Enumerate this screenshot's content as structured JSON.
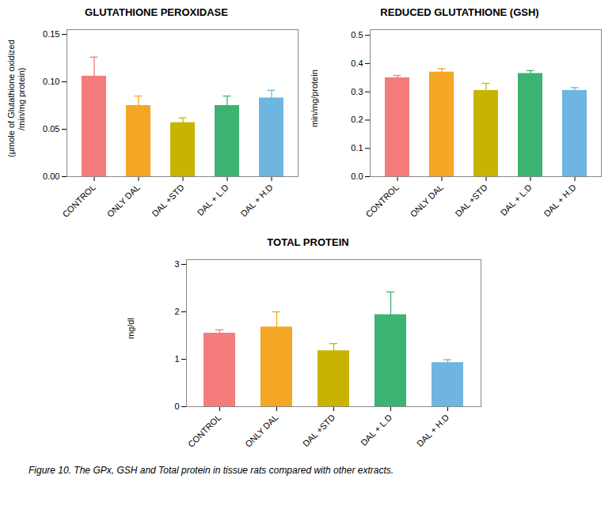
{
  "chart_data": [
    {
      "type": "bar",
      "title": "GLUTATHIONE PEROXIDASE",
      "ylabel": "(μmole of Glutathione oxidized\n/min/mg protein)",
      "categories": [
        "CONTROL",
        "ONLY DAL",
        "DAL +STD",
        "DAL + L.D",
        "DAL + H.D"
      ],
      "values": [
        0.106,
        0.075,
        0.057,
        0.075,
        0.083
      ],
      "errors": [
        0.02,
        0.01,
        0.005,
        0.01,
        0.008
      ],
      "colors": [
        "#F47C7C",
        "#F5A623",
        "#C8B400",
        "#3CB371",
        "#6EB5E0"
      ],
      "ylim": [
        0,
        0.155
      ],
      "yticks": [
        {
          "value": 0,
          "label": "0.00"
        },
        {
          "value": 0.05,
          "label": "0.05"
        },
        {
          "value": 0.1,
          "label": "0.10"
        },
        {
          "value": 0.15,
          "label": "0.15"
        }
      ]
    },
    {
      "type": "bar",
      "title": "REDUCED GLUTATHIONE (GSH)",
      "ylabel": "min/mg/protein",
      "categories": [
        "CONTROL",
        "ONLY DAL",
        "DAL +STD",
        "DAL + L.D",
        "DAL + H.D"
      ],
      "values": [
        0.35,
        0.37,
        0.305,
        0.365,
        0.305
      ],
      "errors": [
        0.008,
        0.012,
        0.025,
        0.01,
        0.01
      ],
      "colors": [
        "#F47C7C",
        "#F5A623",
        "#C8B400",
        "#3CB371",
        "#6EB5E0"
      ],
      "ylim": [
        0,
        0.52
      ],
      "yticks": [
        {
          "value": 0,
          "label": "0.0"
        },
        0.1,
        0.2,
        0.3,
        0.4,
        0.5
      ]
    },
    {
      "type": "bar",
      "title": "TOTAL PROTEIN",
      "ylabel": "mg/dl",
      "categories": [
        "CONTROL",
        "ONLY DAL",
        "DAL +STD",
        "DAL + L.D",
        "DAL + H.D"
      ],
      "values": [
        1.55,
        1.68,
        1.18,
        1.94,
        0.93
      ],
      "errors": [
        0.07,
        0.32,
        0.15,
        0.48,
        0.06
      ],
      "colors": [
        "#F47C7C",
        "#F5A623",
        "#C8B400",
        "#3CB371",
        "#6EB5E0"
      ],
      "ylim": [
        0,
        3.1
      ],
      "yticks": [
        0,
        1,
        2,
        3
      ]
    }
  ],
  "caption": "Figure 10. The GPx, GSH and Total protein in tissue rats compared with other extracts."
}
